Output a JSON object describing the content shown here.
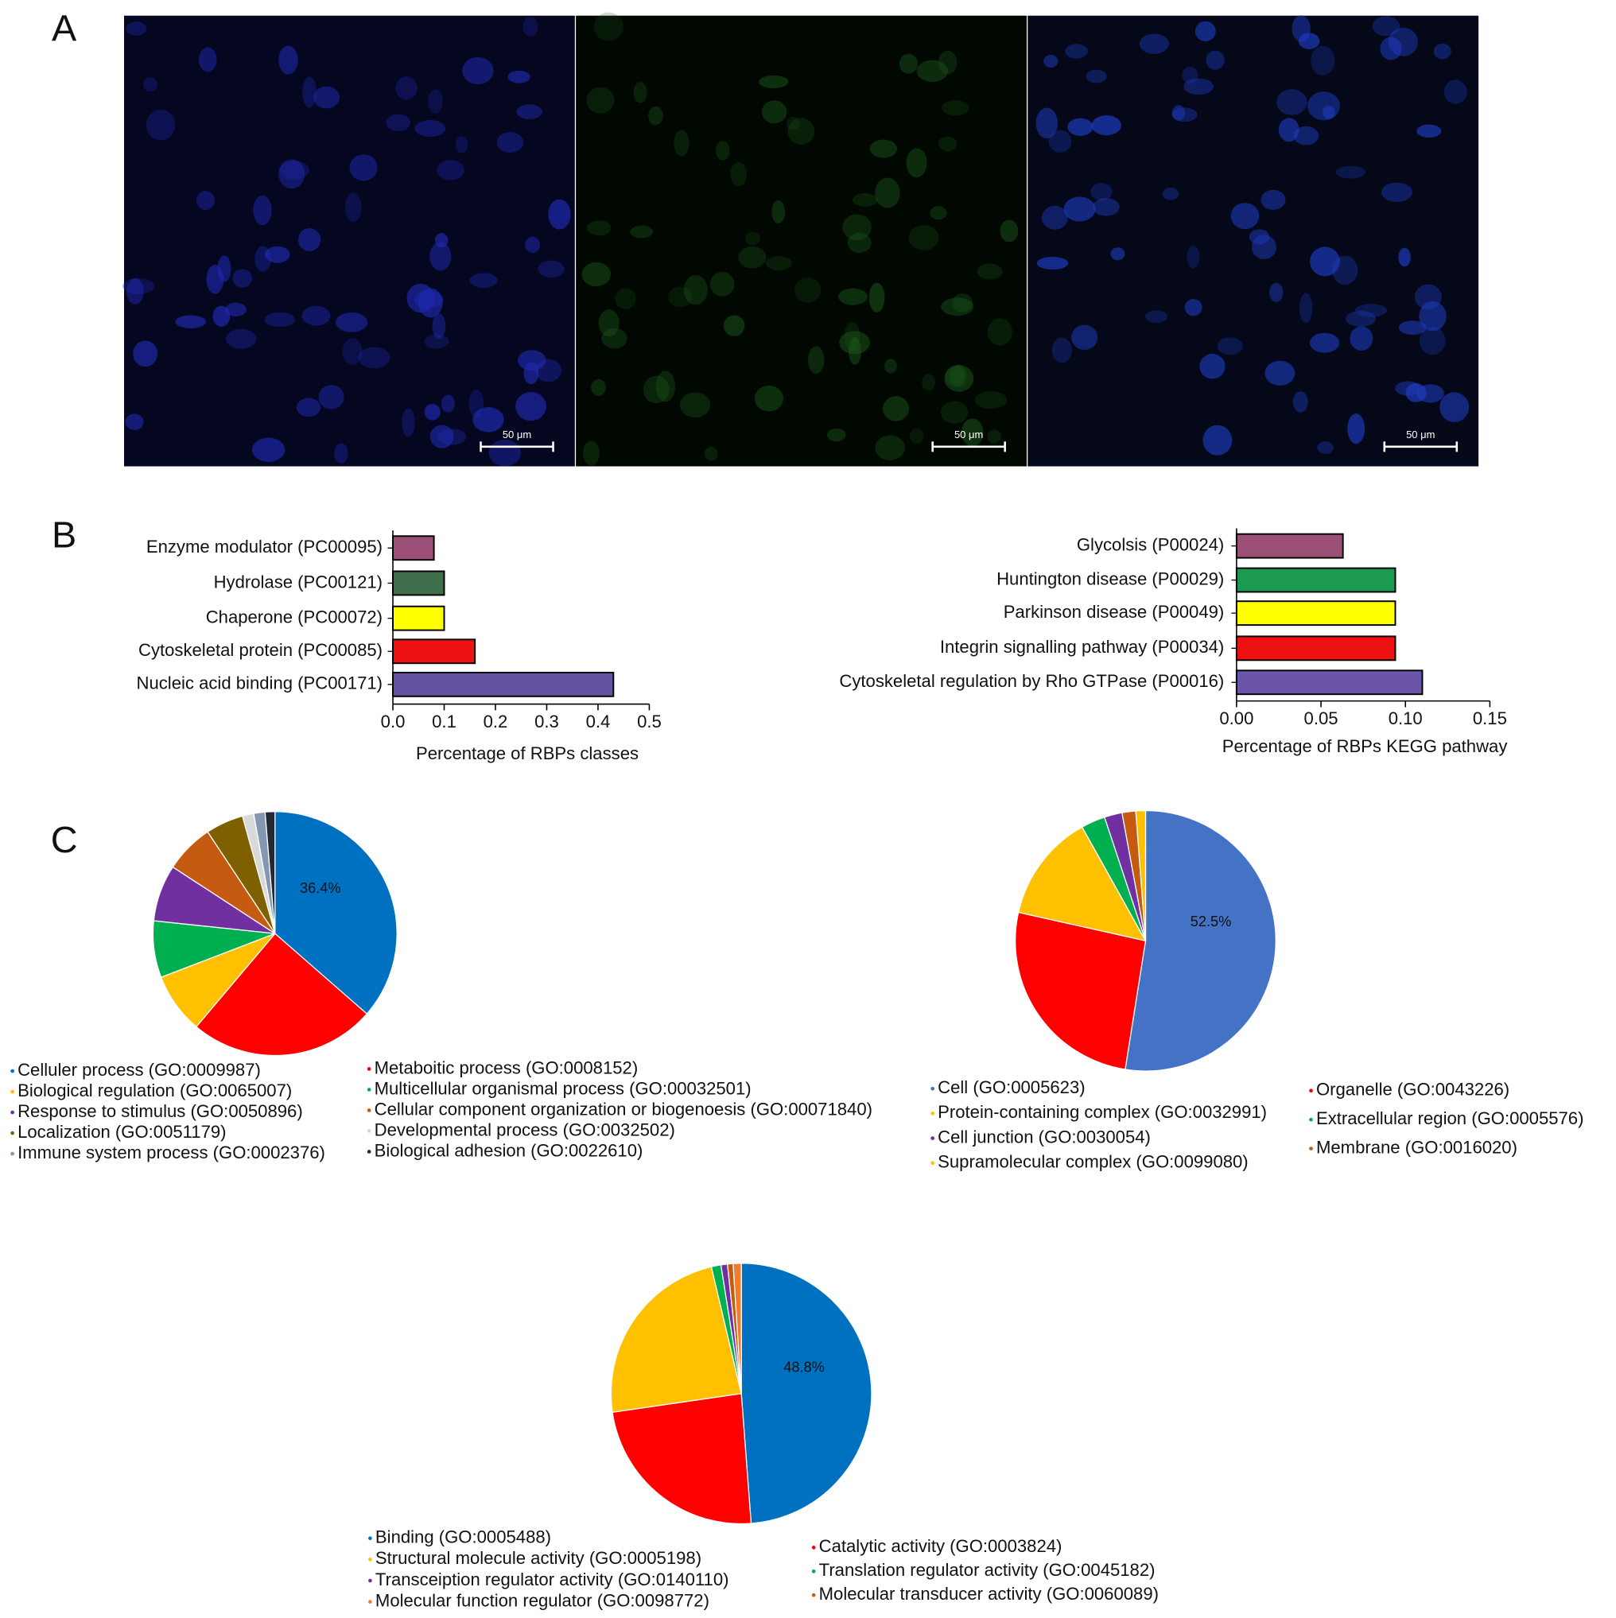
{
  "panel_labels": [
    "A",
    "B",
    "C"
  ],
  "scale_bars": [
    "50 μm",
    "50 μm",
    "50 μm"
  ],
  "chart_data": [
    {
      "type": "bar",
      "orientation": "horizontal",
      "categories": [
        "Enzyme modulator (PC00095)",
        "Hydrolase (PC00121)",
        "Chaperone (PC00072)",
        "Cytoskeletal protein (PC00085)",
        "Nucleic acid binding (PC00171)"
      ],
      "values": [
        0.08,
        0.1,
        0.1,
        0.16,
        0.43
      ],
      "colors": [
        "#9c4f76",
        "#3f6e4b",
        "#ffff00",
        "#ee1111",
        "#6652a3"
      ],
      "x_label": "Percentage of RBPs classes",
      "xlim": [
        0,
        0.5
      ],
      "xticks": [
        {
          "value": 0,
          "label": "0.0"
        },
        0.1,
        0.2,
        0.3,
        0.4,
        0.5
      ]
    },
    {
      "type": "bar",
      "orientation": "horizontal",
      "categories": [
        "Glycolsis (P00024)",
        "Huntington disease (P00029)",
        "Parkinson disease (P00049)",
        "Integrin signalling pathway (P00034)",
        "Cytoskeletal regulation by Rho GTPase (P00016)"
      ],
      "values": [
        0.063,
        0.094,
        0.094,
        0.094,
        0.11
      ],
      "colors": [
        "#9c4f76",
        "#1b9a50",
        "#ffff00",
        "#ee1111",
        "#6a55a8"
      ],
      "x_label": "Percentage of RBPs KEGG pathway",
      "xlim": [
        0,
        0.15
      ],
      "xticks": [
        {
          "value": 0,
          "label": "0.00"
        },
        {
          "value": 0.05,
          "label": "0.05"
        },
        {
          "value": 0.1,
          "label": "0.10"
        },
        {
          "value": 0.15,
          "label": "0.15"
        }
      ]
    },
    {
      "type": "pie",
      "categories": [
        "Celluler process (GO:0009987)",
        "Metaboitic process (GO:0008152)",
        "Biological regulation (GO:0065007)",
        "Multicellular organismal process (GO:00032501)",
        "Response to stimulus (GO:0050896)",
        "Cellular component organization or biogenoesis (GO:00071840)",
        "Localization (GO:0051179)",
        "Developmental process (GO:0032502)",
        "Immune system process (GO:0002376)",
        "Biological adhesion (GO:0022610)"
      ],
      "values": [
        36.4,
        24.7,
        8,
        7.5,
        7.5,
        6.5,
        5,
        1.5,
        1.5,
        1.3
      ],
      "value_labels": [
        "36.4%",
        null,
        null,
        null,
        null,
        null,
        null,
        null,
        null,
        null
      ],
      "colors": [
        "#0070c0",
        "#ff0000",
        "#ffc000",
        "#00b050",
        "#7030a0",
        "#c55a11",
        "#7f6000",
        "#d9d9d9",
        "#8497b0",
        "#222a35"
      ]
    },
    {
      "type": "pie",
      "categories": [
        "Cell (GO:0005623)",
        "Organelle (GO:0043226)",
        "Protein-containing complex (GO:0032991)",
        "Extracellular region (GO:0005576)",
        "Cell junction (GO:0030054)",
        "Membrane (GO:0016020)",
        "Supramolecular complex (GO:0099080)"
      ],
      "values": [
        52.5,
        26,
        13.4,
        3,
        2.2,
        1.7,
        1.2
      ],
      "value_labels": [
        "52.5%",
        null,
        null,
        null,
        null,
        null,
        null
      ],
      "colors": [
        "#4472c4",
        "#ff0000",
        "#ffc000",
        "#00b050",
        "#7030a0",
        "#c55a11",
        "#ffc000"
      ]
    },
    {
      "type": "pie",
      "categories": [
        "Binding (GO:0005488)",
        "Catalytic activity (GO:0003824)",
        "Structural molecule activity (GO:0005198)",
        "Translation regulator activity (GO:0045182)",
        "Transceiption regulator activity (GO:0140110)",
        "Molecular transducer activity (GO:0060089)",
        "Molecular function regulator (GO:0098772)"
      ],
      "values": [
        48.8,
        23.9,
        23.6,
        1.2,
        0.8,
        0.7,
        1.0
      ],
      "value_labels": [
        "48.8%",
        null,
        null,
        null,
        null,
        null,
        null
      ],
      "colors": [
        "#0070c0",
        "#ff0000",
        "#ffc000",
        "#00b050",
        "#7030a0",
        "#c55a11",
        "#ed7d31"
      ]
    }
  ]
}
